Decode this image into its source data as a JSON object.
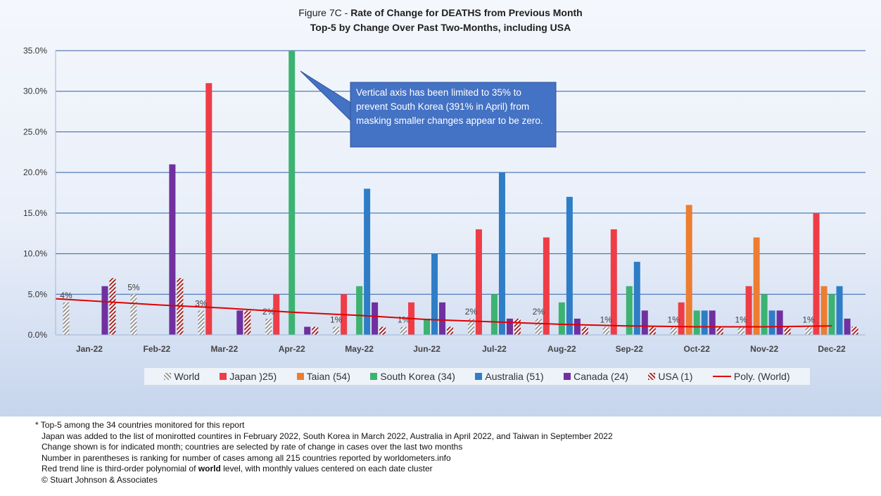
{
  "title": {
    "prefix": "Figure 7C - ",
    "main": "Rate of Change for DEATHS from Previous Month",
    "subtitle": "Top-5 by Change Over Past Two-Months, including USA"
  },
  "callout": "Vertical axis has been limited to 35% to prevent South Korea (391% in April) from masking smaller changes appear to be zero.",
  "chart_data": {
    "type": "bar",
    "categories": [
      "Jan-22",
      "Feb-22",
      "Mar-22",
      "Apr-22",
      "May-22",
      "Jun-22",
      "Jul-22",
      "Aug-22",
      "Sep-22",
      "Oct-22",
      "Nov-22",
      "Dec-22"
    ],
    "y_ticks": [
      "0.0%",
      "5.0%",
      "10.0%",
      "15.0%",
      "20.0%",
      "25.0%",
      "30.0%",
      "35.0%"
    ],
    "ylim": [
      0,
      35
    ],
    "grid": true,
    "legend_position": "bottom",
    "series": [
      {
        "name": "World",
        "color": "#bdbdbd",
        "pattern": "hatch-gray",
        "values": [
          4,
          5,
          3,
          2,
          1,
          1,
          2,
          2,
          1,
          1,
          1,
          1
        ]
      },
      {
        "name": "Japan )25)",
        "color": "#ef3d47",
        "values": [
          null,
          null,
          31,
          5,
          5,
          4,
          13,
          12,
          13,
          4,
          6,
          15
        ]
      },
      {
        "name": "Taian (54)",
        "color": "#ed7d31",
        "values": [
          null,
          null,
          null,
          null,
          null,
          null,
          null,
          null,
          null,
          16,
          12,
          6
        ]
      },
      {
        "name": "South Korea (34)",
        "color": "#3cb371",
        "values": [
          null,
          null,
          null,
          35,
          6,
          2,
          5,
          4,
          6,
          3,
          5,
          5
        ]
      },
      {
        "name": "Australia (51)",
        "color": "#2e7dc6",
        "values": [
          null,
          null,
          null,
          null,
          18,
          10,
          20,
          17,
          9,
          3,
          3,
          6
        ]
      },
      {
        "name": "Canada (24)",
        "color": "#7030a0",
        "values": [
          6,
          21,
          3,
          1,
          4,
          4,
          2,
          2,
          3,
          3,
          3,
          2
        ]
      },
      {
        "name": "USA (1)",
        "color": "#a52a2a",
        "pattern": "hatch-red",
        "values": [
          7,
          7,
          3,
          1,
          1,
          1,
          2,
          1,
          1,
          1,
          1,
          1
        ]
      }
    ],
    "data_labels": {
      "series": "World",
      "values": [
        "4%",
        "5%",
        "3%",
        "2%",
        "1%",
        "1%",
        "2%",
        "2%",
        "1%",
        "1%",
        "1%",
        "1%"
      ]
    },
    "trendline": {
      "name": "Poly. (World)",
      "color": "#e00000",
      "type": "polynomial order 3",
      "values": [
        4.2,
        3.7,
        3.3,
        2.8,
        2.4,
        1.9,
        1.6,
        1.3,
        1.1,
        1.0,
        1.0,
        1.1
      ]
    }
  },
  "notes": [
    "* Top-5 among the 34 countries monitored for this report",
    "Japan was added to the list of monirotted countires in February 2022, South Korea in March 2022, Australia in April 2022, and Taiwan in September 2022",
    "Change shown is for indicated month; countries are selected by rate of change in cases over the last two months",
    "Number in parentheses is ranking for number of cases among all 215 countries reported by worldometers.info",
    "Red trend line is third-order polynomial of ",
    "© Stuart Johnson & Associates"
  ],
  "notes_emphasis": {
    "bold": "world",
    "after": " level, with monthly values centered on each date cluster"
  }
}
